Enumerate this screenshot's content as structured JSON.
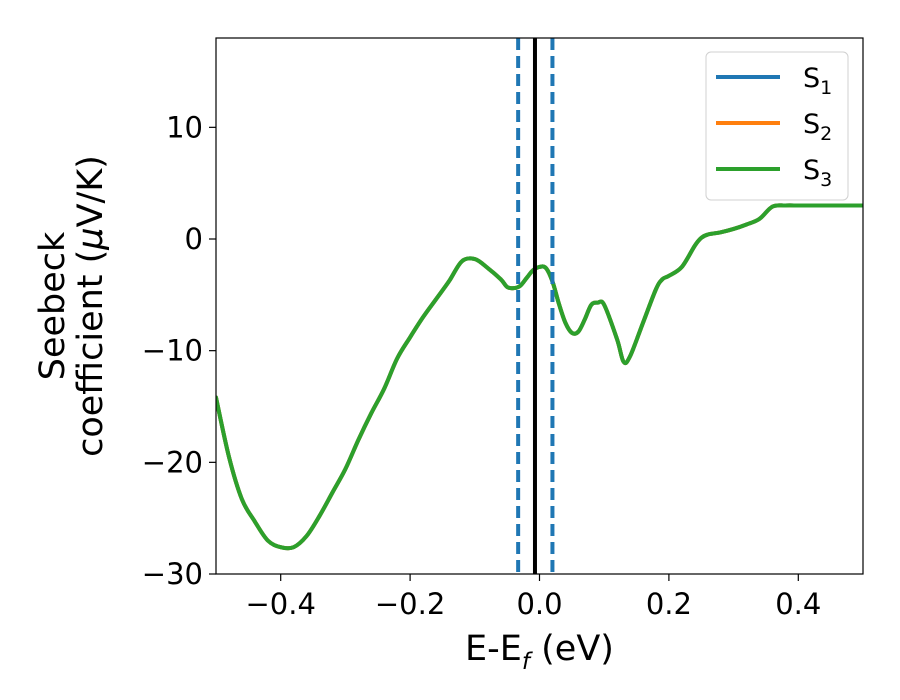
{
  "chart_data": {
    "type": "line",
    "xlabel": {
      "main": "E-E",
      "sub": "f",
      "unit": " (eV)"
    },
    "ylabel": {
      "line1": "Seebeck",
      "line2_prefix": "coefficient  (",
      "line2_mu": "μ",
      "line2_suffix": "V/K)"
    },
    "xlim": [
      -0.5,
      0.5
    ],
    "ylim": [
      -30,
      18
    ],
    "xticks": [
      -0.4,
      -0.2,
      0.0,
      0.2,
      0.4
    ],
    "xtick_labels": [
      "−0.4",
      "−0.2",
      "0.0",
      "0.2",
      "0.4"
    ],
    "yticks": [
      -30,
      -20,
      -10,
      0,
      10
    ],
    "ytick_labels": [
      "−30",
      "−20",
      "−10",
      "0",
      "10"
    ],
    "grid": false,
    "legend_position": "top-right",
    "series": [
      {
        "name": "S",
        "sub": "1",
        "color": "#1f77b4"
      },
      {
        "name": "S",
        "sub": "2",
        "color": "#ff7f0e"
      },
      {
        "name": "S",
        "sub": "3",
        "color": "#2ca02c"
      }
    ],
    "curve": {
      "x": [
        -0.5,
        -0.48,
        -0.46,
        -0.44,
        -0.42,
        -0.4,
        -0.38,
        -0.36,
        -0.34,
        -0.32,
        -0.3,
        -0.28,
        -0.26,
        -0.24,
        -0.22,
        -0.2,
        -0.18,
        -0.16,
        -0.14,
        -0.12,
        -0.1,
        -0.08,
        -0.06,
        -0.05,
        -0.04,
        -0.03,
        -0.02,
        -0.01,
        0.0,
        0.01,
        0.02,
        0.03,
        0.04,
        0.05,
        0.06,
        0.07,
        0.08,
        0.09,
        0.1,
        0.12,
        0.13,
        0.14,
        0.16,
        0.18,
        0.19,
        0.2,
        0.22,
        0.24,
        0.25,
        0.26,
        0.28,
        0.3,
        0.32,
        0.34,
        0.36,
        0.38,
        0.4,
        0.42,
        0.44,
        0.46,
        0.48,
        0.5
      ],
      "y": [
        -14.2,
        -19.5,
        -23.3,
        -25.3,
        -27.0,
        -27.6,
        -27.6,
        -26.6,
        -24.8,
        -22.7,
        -20.6,
        -18.0,
        -15.6,
        -13.4,
        -10.7,
        -8.8,
        -7.0,
        -5.4,
        -3.8,
        -2.0,
        -1.8,
        -2.6,
        -3.6,
        -4.3,
        -4.4,
        -4.2,
        -3.5,
        -2.8,
        -2.5,
        -2.6,
        -3.8,
        -5.8,
        -7.5,
        -8.4,
        -8.3,
        -7.2,
        -5.9,
        -5.7,
        -5.9,
        -9.0,
        -11.0,
        -10.5,
        -7.5,
        -4.5,
        -3.6,
        -3.3,
        -2.5,
        -0.6,
        0.1,
        0.4,
        0.6,
        0.9,
        1.3,
        1.8,
        2.9,
        3.0,
        3.0,
        3.0,
        3.0,
        3.0,
        3.0,
        3.0
      ],
      "series_overlap": "S1, S2 and S3 coincide; S3 drawn on top"
    },
    "vlines_dashed": {
      "x": [
        -0.033,
        0.02
      ],
      "color": "#1f77b4"
    },
    "vline_solid": {
      "x": -0.007,
      "color": "#000000"
    }
  }
}
